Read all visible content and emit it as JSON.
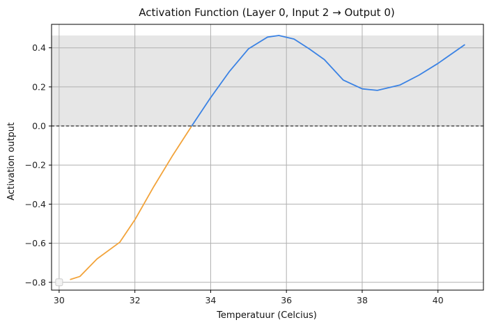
{
  "chart_data": {
    "type": "line",
    "title": "Activation Function (Layer 0, Input 2 → Output 0)",
    "xlabel": "Temperatuur (Celcius)",
    "ylabel": "Activation output",
    "xlim": [
      29.8,
      41.2
    ],
    "ylim": [
      -0.84,
      0.52
    ],
    "x_ticks": [
      30,
      32,
      34,
      36,
      38,
      40
    ],
    "y_ticks": [
      -0.8,
      -0.6,
      -0.4,
      -0.2,
      0.0,
      0.2,
      0.4
    ],
    "x_tick_labels": [
      "30",
      "32",
      "34",
      "36",
      "38",
      "40"
    ],
    "y_tick_labels": [
      "−0.8",
      "−0.6",
      "−0.4",
      "−0.2",
      "0.0",
      "0.2",
      "0.4"
    ],
    "grid": true,
    "shaded_band": [
      0.0,
      0.463
    ],
    "reference_line_y": 0.0,
    "colors": {
      "negative_series": "#f2a33a",
      "positive_series": "#3a82e4",
      "band": "#e6e6e6",
      "grid": "#b0b0b0"
    },
    "series": [
      {
        "color": "#f2a33a",
        "x": [
          30.3,
          30.55,
          31.0,
          31.6,
          32.0,
          32.5,
          33.0,
          33.5
        ],
        "y": [
          -0.785,
          -0.77,
          -0.68,
          -0.595,
          -0.48,
          -0.31,
          -0.15,
          0.0
        ]
      },
      {
        "color": "#3a82e4",
        "x": [
          33.5,
          34.0,
          34.5,
          35.0,
          35.5,
          35.8,
          36.2,
          36.6,
          37.0,
          37.5,
          38.0,
          38.4,
          39.0,
          39.5,
          40.0,
          40.7
        ],
        "y": [
          0.0,
          0.145,
          0.28,
          0.395,
          0.455,
          0.463,
          0.445,
          0.395,
          0.34,
          0.235,
          0.19,
          0.182,
          0.21,
          0.26,
          0.32,
          0.415
        ]
      }
    ],
    "marker": {
      "x": 30.0,
      "y": -0.8
    }
  }
}
